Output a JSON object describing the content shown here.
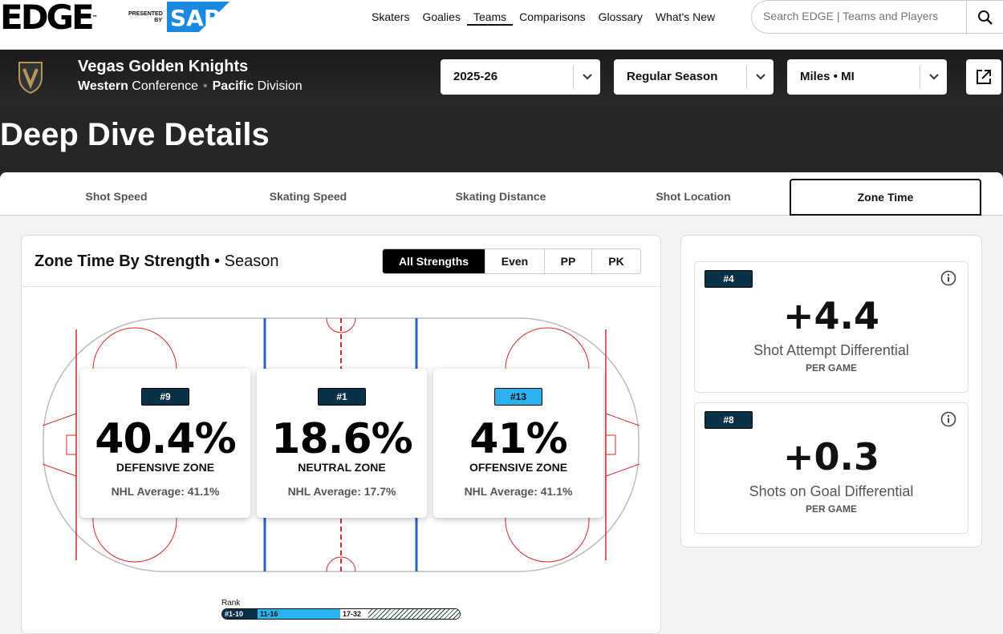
{
  "brand": {
    "logo": "EDGE",
    "tm": "™",
    "presented_by": "PRESENTED BY",
    "sponsor": "SAP"
  },
  "nav": {
    "items": [
      "Skaters",
      "Goalies",
      "Teams",
      "Comparisons",
      "Glossary",
      "What's New"
    ],
    "active": "Teams"
  },
  "search": {
    "placeholder": "Search EDGE | Teams and Players"
  },
  "team": {
    "name": "Vegas Golden Knights",
    "conference_strong": "Western",
    "conference_label": "Conference",
    "division_strong": "Pacific",
    "division_label": "Division"
  },
  "filters": {
    "season": "2025-26",
    "game_type": "Regular Season",
    "units": "Miles • MI"
  },
  "page_title": "Deep Dive Details",
  "tabs": [
    "Shot Speed",
    "Skating Speed",
    "Skating Distance",
    "Shot Location",
    "Zone Time"
  ],
  "active_tab": "Zone Time",
  "zone_card": {
    "title": "Zone Time By Strength",
    "title_suffix": "• Season",
    "strengths": [
      "All Strengths",
      "Even",
      "PP",
      "PK"
    ],
    "active_strength": "All Strengths",
    "zones": [
      {
        "rank": "#9",
        "value": "40.4%",
        "label": "DEFENSIVE ZONE",
        "avg": "NHL Average: 41.1%",
        "tier": "top"
      },
      {
        "rank": "#1",
        "value": "18.6%",
        "label": "NEUTRAL ZONE",
        "avg": "NHL Average: 17.7%",
        "tier": "top"
      },
      {
        "rank": "#13",
        "value": "41%",
        "label": "OFFENSIVE ZONE",
        "avg": "NHL Average: 41.1%",
        "tier": "mid"
      }
    ],
    "legend": {
      "title": "Rank",
      "tiers": [
        "#1-10",
        "11-16",
        "17-32",
        ""
      ]
    }
  },
  "differentials": [
    {
      "rank": "#4",
      "value": "+4.4",
      "label": "Shot Attempt Differential",
      "unit": "PER GAME"
    },
    {
      "rank": "#8",
      "value": "+0.3",
      "label": "Shots on Goal Differential",
      "unit": "PER GAME"
    }
  ],
  "colors": {
    "rank_top": "#083048",
    "rank_mid": "#2db2f0",
    "rink_red": "#d62a2a",
    "rink_blue": "#2b62c7"
  }
}
